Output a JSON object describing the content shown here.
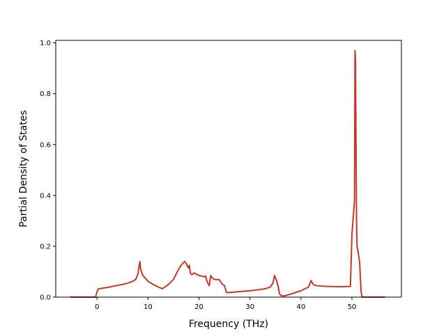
{
  "chart_data": {
    "type": "line",
    "title": "",
    "xlabel": "Frequency (THz)",
    "ylabel": "Partial Density of States",
    "xlim": [
      -8.1,
      59.7
    ],
    "ylim": [
      0.0,
      1.01
    ],
    "xticks": [
      0,
      10,
      20,
      30,
      40,
      50
    ],
    "yticks": [
      0.0,
      0.2,
      0.4,
      0.6,
      0.8,
      1.0
    ],
    "ytick_labels": [
      "0.0",
      "0.2",
      "0.4",
      "0.6",
      "0.8",
      "1.0"
    ],
    "grid": false,
    "line_color": "#c0392b",
    "series": [
      {
        "x": [
          -5.3,
          -4,
          -2,
          -0.3,
          0,
          0.2,
          0.5,
          1,
          2,
          3,
          4,
          5,
          6,
          7,
          7.6,
          8.0,
          8.2,
          8.4,
          8.6,
          9,
          10,
          11,
          12,
          12.8,
          13.5,
          14,
          15,
          16,
          16.5,
          16.9,
          17.2,
          17.6,
          17.9,
          18.1,
          18.3,
          18.6,
          19,
          20,
          21,
          21.3,
          21.6,
          22,
          22.3,
          22.6,
          23,
          24,
          24.6,
          25.0,
          25.4,
          26,
          28,
          30,
          32,
          33,
          34,
          34.5,
          34.8,
          35.2,
          35.5,
          35.8,
          36.2,
          36.8,
          38,
          40,
          41.5,
          42.0,
          42.4,
          43,
          45,
          48,
          49.7,
          50,
          50.2,
          50.5,
          50.6,
          50.7,
          50.8,
          50.9,
          51.0,
          51.2,
          51.5,
          51.8,
          52,
          53,
          55,
          56.5
        ],
        "y": [
          0,
          0,
          0,
          0,
          0.02,
          0.031,
          0.033,
          0.035,
          0.038,
          0.042,
          0.046,
          0.05,
          0.055,
          0.062,
          0.07,
          0.09,
          0.115,
          0.14,
          0.105,
          0.085,
          0.062,
          0.05,
          0.04,
          0.033,
          0.042,
          0.05,
          0.07,
          0.11,
          0.125,
          0.135,
          0.14,
          0.128,
          0.115,
          0.125,
          0.095,
          0.088,
          0.095,
          0.085,
          0.08,
          0.083,
          0.06,
          0.045,
          0.085,
          0.075,
          0.07,
          0.068,
          0.05,
          0.045,
          0.018,
          0.018,
          0.022,
          0.025,
          0.03,
          0.033,
          0.04,
          0.055,
          0.085,
          0.065,
          0.045,
          0.012,
          0.005,
          0.005,
          0.012,
          0.025,
          0.04,
          0.065,
          0.05,
          0.045,
          0.042,
          0.041,
          0.042,
          0.25,
          0.3,
          0.38,
          0.97,
          0.93,
          0.6,
          0.3,
          0.2,
          0.18,
          0.14,
          0.02,
          0,
          0,
          0,
          0
        ]
      }
    ]
  }
}
